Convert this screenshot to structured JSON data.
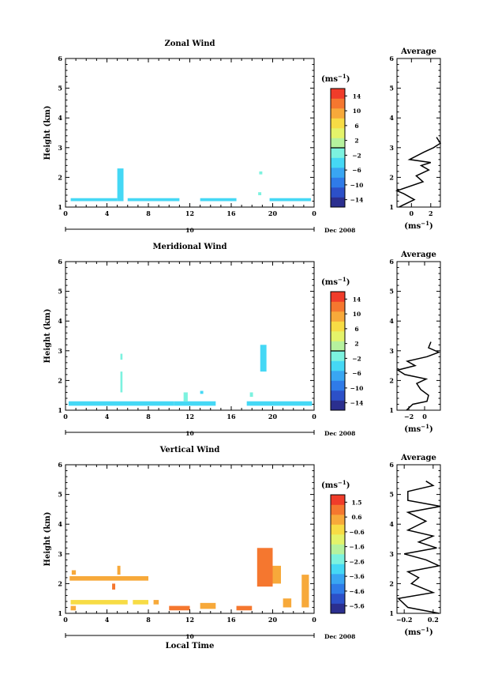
{
  "chart_data": [
    {
      "type": "heatmap",
      "title": "Zonal Wind",
      "ylabel": "Height (km)",
      "ylim": [
        1,
        6
      ],
      "xlim": [
        0,
        24
      ],
      "x_ticks": [
        "0",
        "4",
        "8",
        "12",
        "16",
        "20",
        "0"
      ],
      "y_ticks": [
        "1",
        "2",
        "3",
        "4",
        "5",
        "6"
      ],
      "date_axis": {
        "label": "10",
        "month_year": "Dec 2008"
      },
      "colorbar": {
        "unit": "(ms",
        "unit_exp": "−1",
        "unit_close": ")",
        "ticks": [
          "14",
          "10",
          "6",
          "2",
          "−2",
          "−6",
          "−10",
          "−14"
        ],
        "range": [
          -16,
          16
        ],
        "colors": [
          "#2b2f8f",
          "#2c50c8",
          "#2f7be8",
          "#39a6f2",
          "#45d8f5",
          "#7cf2df",
          "#b6f29e",
          "#e4f36a",
          "#f7dc45",
          "#f7a93a",
          "#f5772f",
          "#f03c2a"
        ]
      },
      "cells": [
        {
          "x": [
            0.5,
            5.0
          ],
          "y": [
            1.2,
            1.3
          ],
          "v": -3
        },
        {
          "x": [
            5.0,
            5.6
          ],
          "y": [
            1.2,
            2.3
          ],
          "v": -5
        },
        {
          "x": [
            6.0,
            11.0
          ],
          "y": [
            1.2,
            1.3
          ],
          "v": -3
        },
        {
          "x": [
            13.0,
            16.5
          ],
          "y": [
            1.2,
            1.3
          ],
          "v": -3
        },
        {
          "x": [
            18.6,
            18.9
          ],
          "y": [
            1.4,
            1.5
          ],
          "v": -1
        },
        {
          "x": [
            18.7,
            19.0
          ],
          "y": [
            2.1,
            2.2
          ],
          "v": -1
        },
        {
          "x": [
            19.7,
            23.7
          ],
          "y": [
            1.2,
            1.3
          ],
          "v": -3
        }
      ],
      "average": {
        "title": "Average",
        "xlabel": "(ms",
        "xlabel_exp": "−1",
        "xlabel_close": ")",
        "xlim": [
          -1.5,
          3
        ],
        "x_ticks": [
          0,
          2
        ],
        "x_tick_labels": [
          "0",
          "2"
        ],
        "ylim": [
          1,
          6
        ],
        "y_ticks": [
          "1",
          "2",
          "3",
          "4",
          "5",
          "6"
        ],
        "profile": [
          [
            -1.3,
            1.0
          ],
          [
            0.3,
            1.25
          ],
          [
            -0.8,
            1.45
          ],
          [
            -1.5,
            1.55
          ],
          [
            1.2,
            1.85
          ],
          [
            0.5,
            2.05
          ],
          [
            1.8,
            2.25
          ],
          [
            1.0,
            2.4
          ],
          [
            2.0,
            2.5
          ],
          [
            -0.2,
            2.6
          ],
          [
            1.3,
            2.85
          ],
          [
            2.3,
            3.0
          ],
          [
            3.0,
            3.15
          ],
          [
            2.6,
            3.35
          ]
        ]
      }
    },
    {
      "type": "heatmap",
      "title": "Meridional Wind",
      "ylabel": "Height (km)",
      "ylim": [
        1,
        6
      ],
      "xlim": [
        0,
        24
      ],
      "x_ticks": [
        "0",
        "4",
        "8",
        "12",
        "16",
        "20",
        "0"
      ],
      "y_ticks": [
        "1",
        "2",
        "3",
        "4",
        "5",
        "6"
      ],
      "date_axis": {
        "label": "10",
        "month_year": "Dec 2008"
      },
      "colorbar": {
        "unit": "(ms",
        "unit_exp": "−1",
        "unit_close": ")",
        "ticks": [
          "14",
          "10",
          "6",
          "2",
          "−2",
          "−6",
          "−10",
          "−14"
        ],
        "range": [
          -16,
          16
        ],
        "colors": [
          "#2b2f8f",
          "#2c50c8",
          "#2f7be8",
          "#39a6f2",
          "#45d8f5",
          "#7cf2df",
          "#b6f29e",
          "#e4f36a",
          "#f7dc45",
          "#f7a93a",
          "#f5772f",
          "#f03c2a"
        ]
      },
      "cells": [
        {
          "x": [
            0.3,
            10.5
          ],
          "y": [
            1.15,
            1.3
          ],
          "v": -3
        },
        {
          "x": [
            10.5,
            14.5
          ],
          "y": [
            1.15,
            1.3
          ],
          "v": -3
        },
        {
          "x": [
            17.5,
            23.8
          ],
          "y": [
            1.15,
            1.3
          ],
          "v": -3
        },
        {
          "x": [
            5.3,
            5.5
          ],
          "y": [
            1.6,
            2.3
          ],
          "v": -1
        },
        {
          "x": [
            5.3,
            5.5
          ],
          "y": [
            2.7,
            2.9
          ],
          "v": -1
        },
        {
          "x": [
            11.4,
            11.8
          ],
          "y": [
            1.3,
            1.6
          ],
          "v": -2
        },
        {
          "x": [
            13.0,
            13.3
          ],
          "y": [
            1.55,
            1.65
          ],
          "v": -3
        },
        {
          "x": [
            18.8,
            19.4
          ],
          "y": [
            2.3,
            3.2
          ],
          "v": -3
        },
        {
          "x": [
            17.8,
            18.1
          ],
          "y": [
            1.45,
            1.6
          ],
          "v": -2
        }
      ],
      "average": {
        "title": "Average",
        "xlabel": "(ms",
        "xlabel_exp": "−1",
        "xlabel_close": ")",
        "xlim": [
          -3.5,
          2
        ],
        "x_ticks": [
          -2,
          0
        ],
        "x_tick_labels": [
          "−2",
          "0"
        ],
        "ylim": [
          1,
          6
        ],
        "y_ticks": [
          "1",
          "2",
          "3",
          "4",
          "5",
          "6"
        ],
        "profile": [
          [
            -2.3,
            1.0
          ],
          [
            -1.5,
            1.2
          ],
          [
            0.3,
            1.3
          ],
          [
            0.5,
            1.5
          ],
          [
            -0.5,
            1.7
          ],
          [
            -1.0,
            1.9
          ],
          [
            0.2,
            2.05
          ],
          [
            -2.5,
            2.2
          ],
          [
            -3.4,
            2.35
          ],
          [
            -1.2,
            2.5
          ],
          [
            -2.2,
            2.65
          ],
          [
            0.3,
            2.8
          ],
          [
            1.8,
            2.95
          ],
          [
            0.5,
            3.1
          ],
          [
            0.8,
            3.3
          ]
        ]
      }
    },
    {
      "type": "heatmap",
      "title": "Vertical Wind",
      "ylabel": "Height (km)",
      "xlabel": "Local Time",
      "ylim": [
        1,
        6
      ],
      "xlim": [
        0,
        24
      ],
      "x_ticks": [
        "0",
        "4",
        "8",
        "12",
        "16",
        "20",
        "0"
      ],
      "y_ticks": [
        "1",
        "2",
        "3",
        "4",
        "5",
        "6"
      ],
      "date_axis": {
        "label": "10",
        "month_year": "Dec 2008"
      },
      "colorbar": {
        "unit": "(ms",
        "unit_exp": "−1",
        "unit_close": ")",
        "ticks": [
          "1.5",
          "0.6",
          "−0.6",
          "−1.6",
          "−2.6",
          "−3.6",
          "−4.6",
          "−5.6"
        ],
        "range": [
          -6.1,
          2.0
        ],
        "colors": [
          "#2b2f8f",
          "#2c50c8",
          "#2f7be8",
          "#39a6f2",
          "#45d8f5",
          "#7cf2df",
          "#b6f29e",
          "#e4f36a",
          "#f7dc45",
          "#f7a93a",
          "#f5772f",
          "#f03c2a"
        ]
      },
      "cells": [
        {
          "x": [
            0.4,
            8.0
          ],
          "y": [
            2.1,
            2.25
          ],
          "v": 0.2
        },
        {
          "x": [
            0.6,
            1.0
          ],
          "y": [
            2.3,
            2.45
          ],
          "v": 0.2
        },
        {
          "x": [
            5.0,
            5.3
          ],
          "y": [
            2.3,
            2.6
          ],
          "v": 0.0
        },
        {
          "x": [
            0.5,
            6.0
          ],
          "y": [
            1.3,
            1.45
          ],
          "v": -0.7
        },
        {
          "x": [
            6.5,
            8.0
          ],
          "y": [
            1.3,
            1.45
          ],
          "v": -0.7
        },
        {
          "x": [
            8.5,
            9.0
          ],
          "y": [
            1.3,
            1.45
          ],
          "v": 0.0
        },
        {
          "x": [
            0.5,
            1.0
          ],
          "y": [
            1.1,
            1.25
          ],
          "v": 0.1
        },
        {
          "x": [
            10.0,
            12.0
          ],
          "y": [
            1.1,
            1.25
          ],
          "v": 0.8
        },
        {
          "x": [
            13.0,
            14.5
          ],
          "y": [
            1.15,
            1.35
          ],
          "v": 0.0
        },
        {
          "x": [
            16.5,
            18.0
          ],
          "y": [
            1.1,
            1.25
          ],
          "v": 0.9
        },
        {
          "x": [
            18.5,
            20.0
          ],
          "y": [
            1.9,
            3.2
          ],
          "v": 0.7
        },
        {
          "x": [
            20.0,
            20.8
          ],
          "y": [
            2.0,
            2.6
          ],
          "v": 0.1
        },
        {
          "x": [
            21.0,
            21.8
          ],
          "y": [
            1.2,
            1.5
          ],
          "v": 0.1
        },
        {
          "x": [
            22.8,
            23.5
          ],
          "y": [
            1.2,
            2.3
          ],
          "v": 0.1
        },
        {
          "x": [
            4.5,
            4.8
          ],
          "y": [
            1.8,
            2.0
          ],
          "v": 1.2
        }
      ],
      "average": {
        "title": "Average",
        "xlabel": "(ms",
        "xlabel_exp": "−1",
        "xlabel_close": ")",
        "xlim": [
          -0.3,
          0.3
        ],
        "x_ticks": [
          -0.2,
          0.2
        ],
        "x_tick_labels": [
          "−0.2",
          "0.2"
        ],
        "ylim": [
          1,
          6
        ],
        "y_ticks": [
          "1",
          "2",
          "3",
          "4",
          "5",
          "6"
        ],
        "profile": [
          [
            0.28,
            1.0
          ],
          [
            -0.15,
            1.2
          ],
          [
            -0.28,
            1.5
          ],
          [
            0.2,
            1.7
          ],
          [
            -0.1,
            2.0
          ],
          [
            0.0,
            2.2
          ],
          [
            -0.15,
            2.4
          ],
          [
            0.28,
            2.6
          ],
          [
            0.1,
            2.8
          ],
          [
            -0.2,
            3.0
          ],
          [
            0.25,
            3.2
          ],
          [
            0.0,
            3.4
          ],
          [
            0.2,
            3.6
          ],
          [
            -0.15,
            3.8
          ],
          [
            0.1,
            4.1
          ],
          [
            -0.15,
            4.4
          ],
          [
            0.3,
            4.6
          ],
          [
            -0.15,
            4.8
          ],
          [
            -0.15,
            5.1
          ],
          [
            0.2,
            5.3
          ],
          [
            0.1,
            5.45
          ]
        ]
      }
    }
  ]
}
